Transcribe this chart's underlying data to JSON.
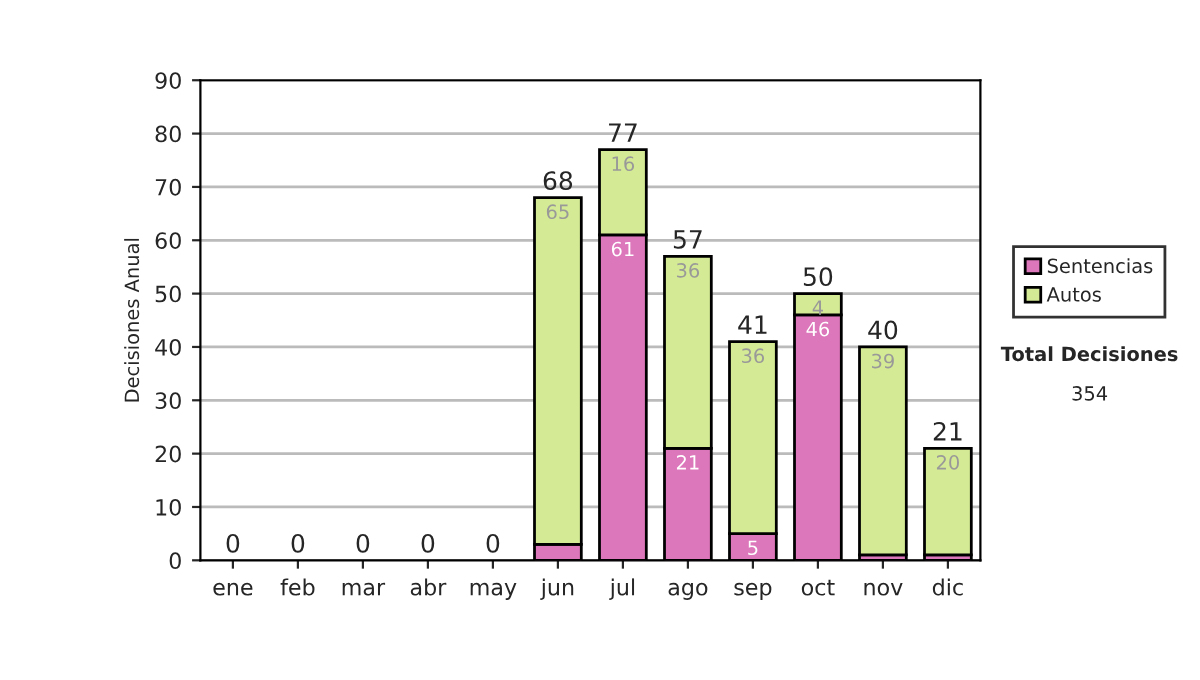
{
  "chart_data": {
    "type": "bar",
    "stacked": true,
    "ylabel": "Decisiones Anual",
    "categories": [
      "ene",
      "feb",
      "mar",
      "abr",
      "may",
      "jun",
      "jul",
      "ago",
      "sep",
      "oct",
      "nov",
      "dic"
    ],
    "series": [
      {
        "name": "Sentencias",
        "color": "#dd77bb",
        "values": [
          0,
          0,
          0,
          0,
          0,
          3,
          61,
          21,
          5,
          46,
          1,
          1
        ],
        "value_labels": [
          null,
          null,
          null,
          null,
          null,
          null,
          "61",
          "21",
          "5",
          "46",
          null,
          null
        ]
      },
      {
        "name": "Autos",
        "color": "#d4ea94",
        "values": [
          0,
          0,
          0,
          0,
          0,
          65,
          16,
          36,
          36,
          4,
          39,
          20
        ],
        "value_labels": [
          null,
          null,
          null,
          null,
          null,
          "65",
          "16",
          "36",
          "36",
          "4",
          "39",
          "20"
        ]
      }
    ],
    "totals": [
      "0",
      "0",
      "0",
      "0",
      "0",
      "68",
      "77",
      "57",
      "41",
      "50",
      "40",
      "21"
    ],
    "ylim": [
      0,
      90
    ],
    "yticks": [
      0,
      10,
      20,
      30,
      40,
      50,
      60,
      70,
      80,
      90
    ],
    "grid": "y",
    "legend": "right",
    "annotations": [
      "Total Decisiones",
      "354"
    ]
  }
}
